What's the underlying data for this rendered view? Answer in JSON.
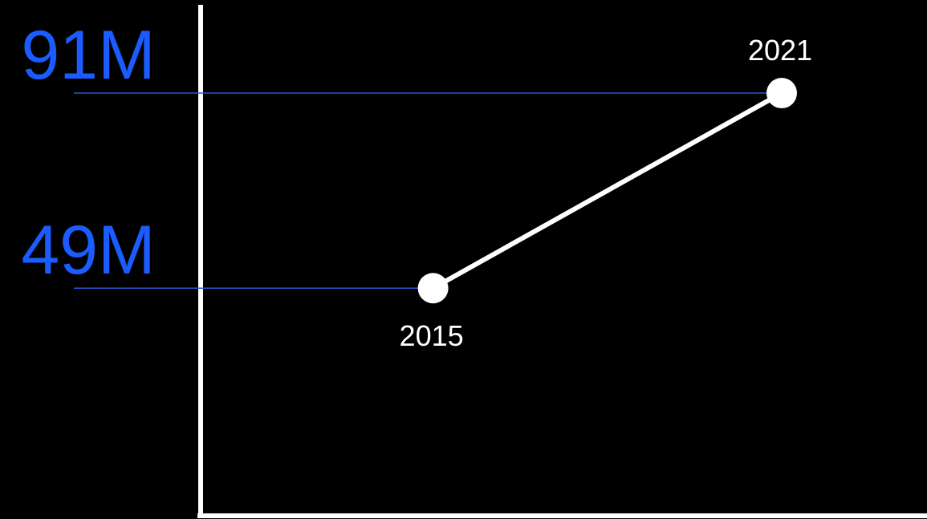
{
  "colors": {
    "background": "#000000",
    "line": "#ffffff",
    "axis": "#ffffff",
    "value_label": "#1a5cff",
    "guide_line": "#2a55d6",
    "year_label": "#ffffff"
  },
  "chart_data": {
    "type": "line",
    "x": [
      2015,
      2021
    ],
    "values": [
      49,
      91
    ],
    "value_labels": [
      "49M",
      "91M"
    ],
    "point_labels": [
      "2015",
      "2021"
    ],
    "y_unit": "M",
    "ylim": [
      0,
      110
    ],
    "xlim": [
      2011,
      2023.5
    ],
    "grid": false
  }
}
